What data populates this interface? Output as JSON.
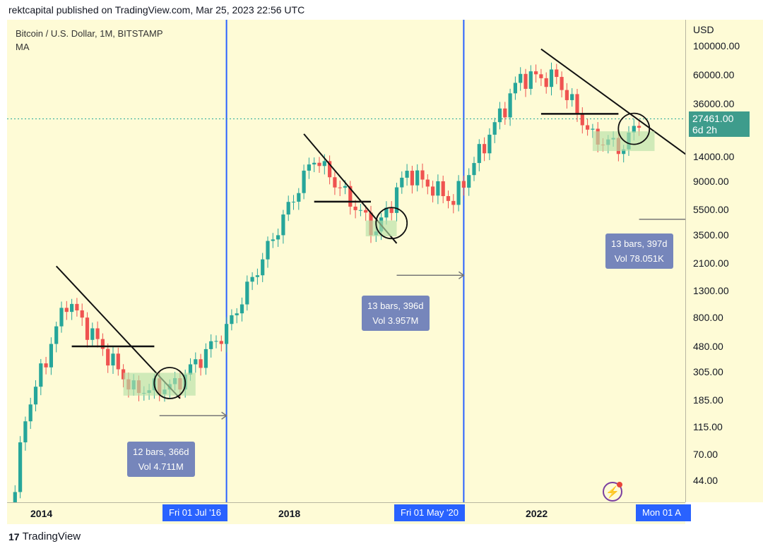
{
  "header": {
    "text": "rektcapital published on TradingView.com, Mar 25, 2023 22:56 UTC"
  },
  "legend": {
    "symbol_line": "Bitcoin / U.S. Dollar, 1M, BITSTAMP",
    "indicator": "MA"
  },
  "price_axis": {
    "currency": "USD",
    "current_price": "27461.00",
    "countdown": "6d 2h"
  },
  "time_axis": {
    "vertical_line_labels": [
      "Fri 01 Jul '16",
      "Fri 01 May '20",
      "Mon 01 A"
    ]
  },
  "measurements": [
    {
      "bars": "12 bars, 366d",
      "vol": "Vol 4.711M"
    },
    {
      "bars": "13 bars, 396d",
      "vol": "Vol 3.957M"
    },
    {
      "bars": "13 bars, 397d",
      "vol": "Vol 78.051K"
    }
  ],
  "footer": {
    "brand": "TradingView",
    "logo": "17"
  },
  "colors": {
    "up": "#26a69a",
    "down": "#ef5350",
    "background": "#fefbd6",
    "vertical_line": "#2962ff",
    "zone": "#b7e0a8",
    "measure_box": "#6b7db9"
  },
  "icons": {
    "bolt": "lightning-bolt-icon"
  },
  "chart_data": {
    "type": "candlestick",
    "title": "Bitcoin / U.S. Dollar, 1M, BITSTAMP",
    "y_scale": "log",
    "ylim": [
      30,
      160000
    ],
    "yticks": [
      "100000.00",
      "60000.00",
      "36000.00",
      "14000.00",
      "9000.00",
      "5500.00",
      "3500.00",
      "2100.00",
      "1300.00",
      "800.00",
      "480.00",
      "305.00",
      "185.00",
      "115.00",
      "70.00",
      "44.00"
    ],
    "x_ticks": [
      "2014",
      "2018",
      "2022"
    ],
    "anchor_points": [
      {
        "date": "2013-01-01",
        "close": 20
      },
      {
        "date": "2013-04-01",
        "close": 140
      },
      {
        "date": "2013-12-01",
        "close": 1100
      },
      {
        "date": "2015-01-01",
        "close": 220
      },
      {
        "date": "2015-09-01",
        "close": 240
      },
      {
        "date": "2016-07-01",
        "close": 650
      },
      {
        "date": "2017-12-01",
        "close": 14000
      },
      {
        "date": "2018-12-01",
        "close": 3700
      },
      {
        "date": "2019-06-01",
        "close": 10800
      },
      {
        "date": "2020-03-01",
        "close": 6400
      },
      {
        "date": "2021-04-01",
        "close": 58000
      },
      {
        "date": "2021-11-01",
        "close": 57000
      },
      {
        "date": "2022-06-01",
        "close": 19800
      },
      {
        "date": "2022-12-01",
        "close": 16500
      },
      {
        "date": "2023-03-01",
        "close": 27461
      }
    ],
    "halving_dates": [
      "2016-07-01",
      "2020-05-01",
      "2024-04-01"
    ]
  }
}
